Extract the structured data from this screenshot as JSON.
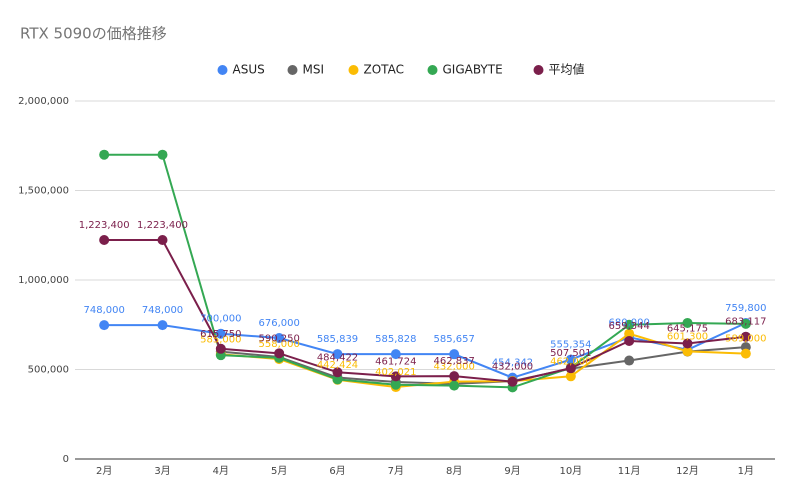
{
  "chart_data": {
    "type": "line",
    "title": "RTX 5090の価格推移",
    "categories": [
      "2月",
      "3月",
      "4月",
      "5月",
      "6月",
      "7月",
      "8月",
      "9月",
      "10月",
      "11月",
      "12月",
      "1月"
    ],
    "ylim": [
      0,
      2000000
    ],
    "yticks": [
      0,
      {
        "value": 500000,
        "label": "500,000"
      },
      {
        "value": 1000000,
        "label": "1,000,000"
      },
      {
        "value": 1500000,
        "label": "1,500,000"
      },
      {
        "value": 2000000,
        "label": "2,000,000"
      }
    ],
    "grid": true,
    "legend": "top",
    "series": [
      {
        "name": "ASUS",
        "color": "#4285f4",
        "values": [
          748000,
          748000,
          700000,
          676000,
          585839,
          585828,
          585657,
          454342,
          555354,
          680000,
          610000,
          759800
        ],
        "value_labels": [
          "748,000",
          "748,000",
          "700,000",
          "676,000",
          "585,839",
          "585,828",
          "585,657",
          "454,342",
          "555,354",
          "680,000",
          null,
          "759,800"
        ]
      },
      {
        "name": "MSI",
        "color": "#666666",
        "values": [
          null,
          null,
          600000,
          570000,
          455000,
          430000,
          420000,
          435000,
          505000,
          550000,
          600000,
          625000
        ],
        "value_labels": [
          null,
          null,
          null,
          null,
          null,
          null,
          null,
          null,
          null,
          null,
          null,
          null
        ]
      },
      {
        "name": "ZOTAC",
        "color": "#fbbc04",
        "values": [
          null,
          null,
          585000,
          558000,
          442424,
          402021,
          432000,
          435000,
          462000,
          700000,
          601300,
          589000
        ],
        "value_labels": [
          null,
          null,
          "585,000",
          "558,000",
          "442,424",
          "402,021",
          "432,000",
          null,
          "462,000",
          null,
          "601,300",
          "589,000"
        ]
      },
      {
        "name": "GIGABYTE",
        "color": "#34a853",
        "values": [
          1700000,
          1700000,
          580000,
          565000,
          445000,
          415000,
          410000,
          400000,
          510000,
          750000,
          760000,
          755000
        ],
        "value_labels": [
          null,
          null,
          null,
          null,
          null,
          null,
          null,
          null,
          null,
          null,
          null,
          null
        ]
      },
      {
        "name": "平均値",
        "color": "#7b1f4b",
        "values": [
          1223400,
          1223400,
          615750,
          590250,
          484422,
          461724,
          462837,
          432000,
          507501,
          659344,
          645175,
          683117
        ],
        "value_labels": [
          "1,223,400",
          "1,223,400",
          "615,750",
          "590,250",
          "484,422",
          "461,724",
          "462,837",
          "432,000",
          "507,501",
          "659,344",
          "645,175",
          "683,117"
        ]
      }
    ]
  }
}
